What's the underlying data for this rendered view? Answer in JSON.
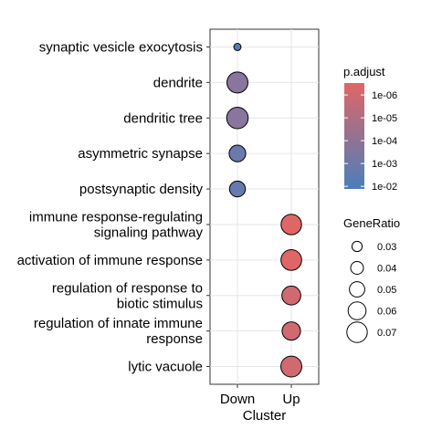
{
  "chart_data": {
    "type": "scatter",
    "subtype": "dot-plot",
    "xlabel": "Cluster",
    "ylabel": "",
    "x_categories": [
      "Down",
      "Up"
    ],
    "y_categories": [
      [
        "synaptic vesicle exocytosis"
      ],
      [
        "dendrite"
      ],
      [
        "dendritic tree"
      ],
      [
        "asymmetric synapse"
      ],
      [
        "postsynaptic density"
      ],
      [
        "immune response-regulating",
        "signaling pathway"
      ],
      [
        "activation of immune response"
      ],
      [
        "regulation of response to",
        "biotic stimulus"
      ],
      [
        "regulation of innate immune",
        "response"
      ],
      [
        "lytic vacuole"
      ]
    ],
    "points": [
      {
        "x": "Down",
        "y": 0,
        "gene_ratio": 0.02,
        "p_adjust": 0.008
      },
      {
        "x": "Down",
        "y": 1,
        "gene_ratio": 0.072,
        "p_adjust": 0.0002
      },
      {
        "x": "Down",
        "y": 2,
        "gene_ratio": 0.074,
        "p_adjust": 0.0002
      },
      {
        "x": "Down",
        "y": 3,
        "gene_ratio": 0.055,
        "p_adjust": 0.0015
      },
      {
        "x": "Down",
        "y": 4,
        "gene_ratio": 0.052,
        "p_adjust": 0.002
      },
      {
        "x": "Up",
        "y": 5,
        "gene_ratio": 0.07,
        "p_adjust": 2e-07
      },
      {
        "x": "Up",
        "y": 6,
        "gene_ratio": 0.071,
        "p_adjust": 2e-07
      },
      {
        "x": "Up",
        "y": 7,
        "gene_ratio": 0.064,
        "p_adjust": 1e-06
      },
      {
        "x": "Up",
        "y": 8,
        "gene_ratio": 0.062,
        "p_adjust": 1e-06
      },
      {
        "x": "Up",
        "y": 9,
        "gene_ratio": 0.072,
        "p_adjust": 1e-06
      }
    ],
    "color_legend": {
      "title": "p.adjust",
      "ticks": [
        "1e-06",
        "1e-05",
        "1e-04",
        "1e-03",
        "1e-02"
      ],
      "tick_values": [
        1e-06,
        1e-05,
        0.0001,
        0.001,
        0.01
      ],
      "range": [
        3e-07,
        0.013
      ],
      "low_color": "#e06666",
      "high_color": "#4a7fba",
      "scale": "log"
    },
    "size_legend": {
      "title": "GeneRatio",
      "labels": [
        "0.03",
        "0.04",
        "0.05",
        "0.06",
        "0.07"
      ],
      "values": [
        0.03,
        0.04,
        0.05,
        0.06,
        0.07
      ]
    },
    "grid": true,
    "legend_position": "right"
  }
}
